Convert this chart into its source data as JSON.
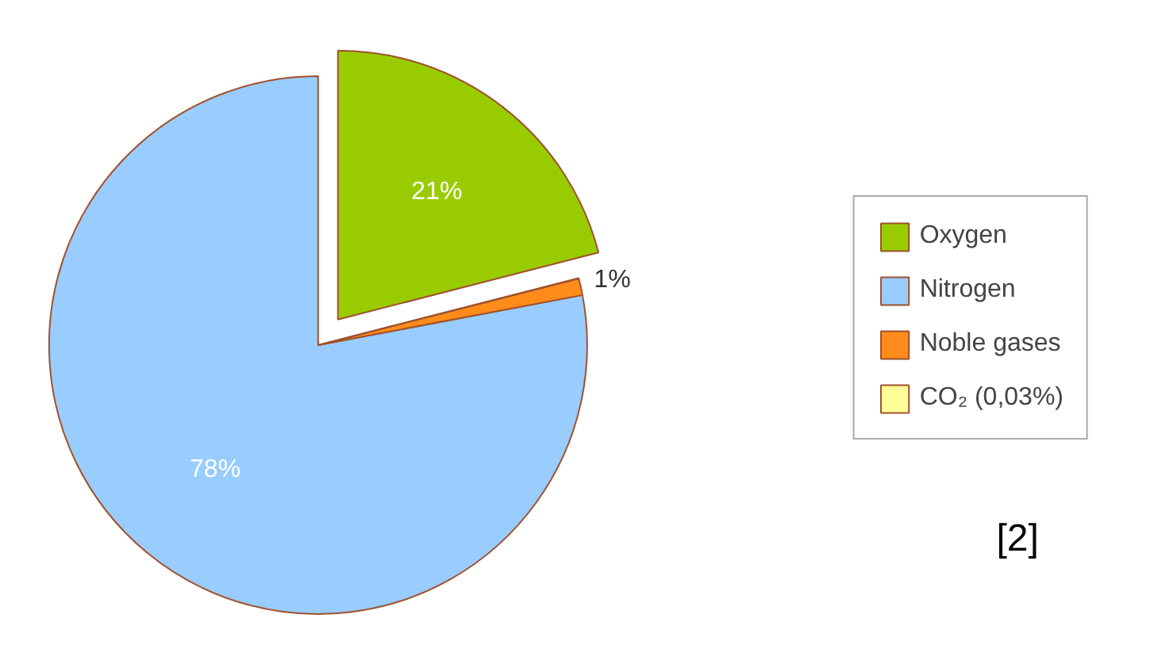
{
  "chart_data": {
    "type": "pie",
    "categories": [
      "Oxygen",
      "Nitrogen",
      "Noble gases",
      "CO₂ (0,03%)"
    ],
    "values": [
      21,
      78,
      1,
      0.03
    ],
    "colors": [
      "#99cc00",
      "#99ccff",
      "#ff8c1a",
      "#ffff99"
    ],
    "value_labels": [
      "21%",
      "78%",
      "1%",
      null
    ],
    "legend": "right",
    "annotations": [
      "[2]"
    ]
  }
}
